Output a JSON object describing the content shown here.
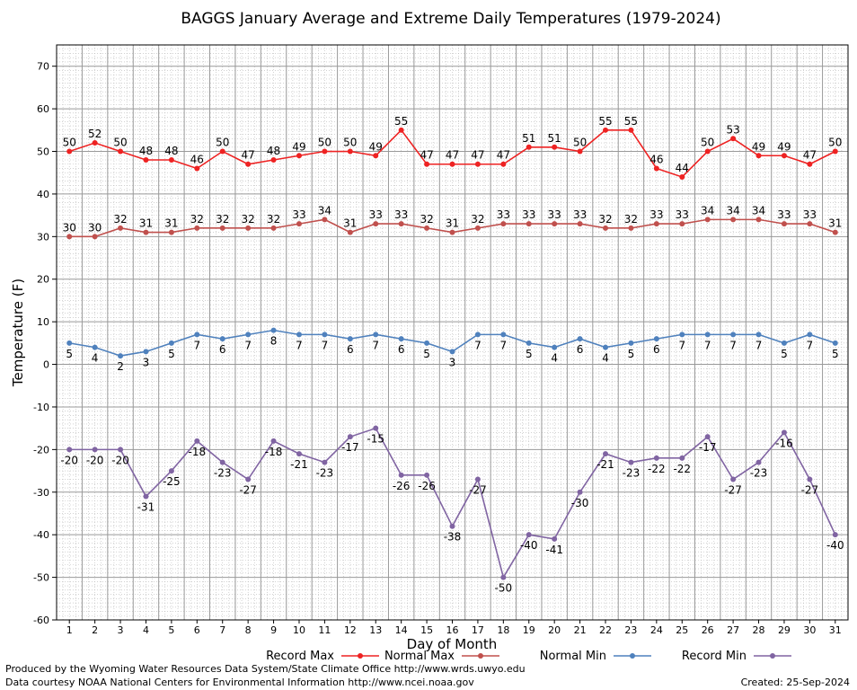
{
  "chart_data": {
    "type": "line",
    "title": "BAGGS January Average and Extreme Daily Temperatures (1979-2024)",
    "xlabel": "Day of Month",
    "ylabel": "Temperature (F)",
    "ylim": [
      -60,
      75
    ],
    "yticks": [
      -60,
      -50,
      -40,
      -30,
      -20,
      -10,
      0,
      10,
      20,
      30,
      40,
      50,
      60,
      70
    ],
    "x": [
      1,
      2,
      3,
      4,
      5,
      6,
      7,
      8,
      9,
      10,
      11,
      12,
      13,
      14,
      15,
      16,
      17,
      18,
      19,
      20,
      21,
      22,
      23,
      24,
      25,
      26,
      27,
      28,
      29,
      30,
      31
    ],
    "grid": true,
    "legend_position": "bottom",
    "series": [
      {
        "name": "Record Max",
        "color": "#ee2222",
        "label_side": "above",
        "values": [
          50,
          52,
          50,
          48,
          48,
          46,
          50,
          47,
          48,
          49,
          50,
          50,
          49,
          55,
          47,
          47,
          47,
          47,
          51,
          51,
          50,
          55,
          55,
          46,
          44,
          50,
          53,
          49,
          49,
          47,
          50
        ]
      },
      {
        "name": "Normal Max",
        "color": "#c0504d",
        "label_side": "above",
        "values": [
          30,
          30,
          32,
          31,
          31,
          32,
          32,
          32,
          32,
          33,
          34,
          31,
          33,
          33,
          32,
          31,
          32,
          33,
          33,
          33,
          33,
          32,
          32,
          33,
          33,
          34,
          34,
          34,
          33,
          33,
          31
        ]
      },
      {
        "name": "Normal Min",
        "color": "#4f81bd",
        "label_side": "below",
        "values": [
          5,
          4,
          2,
          3,
          5,
          7,
          6,
          7,
          8,
          7,
          7,
          6,
          7,
          6,
          5,
          3,
          7,
          7,
          5,
          4,
          6,
          4,
          5,
          6,
          7,
          7,
          7,
          7,
          5,
          7,
          5
        ]
      },
      {
        "name": "Record Min",
        "color": "#8064a2",
        "label_side": "below",
        "values": [
          -20,
          -20,
          -20,
          -31,
          -25,
          -18,
          -23,
          -27,
          -18,
          -21,
          -23,
          -17,
          -15,
          -26,
          -26,
          -38,
          -27,
          -50,
          -40,
          -41,
          -30,
          -21,
          -23,
          -22,
          -22,
          -17,
          -27,
          -23,
          -16,
          -27,
          -40
        ]
      }
    ]
  },
  "footer": {
    "producer": "Produced by the Wyoming Water Resources Data System/State Climate Office http://www.wrds.uwyo.edu",
    "courtesy": "Data courtesy NOAA National Centers for Environmental Information http://www.ncei.noaa.gov",
    "created": "Created:  25-Sep-2024"
  }
}
